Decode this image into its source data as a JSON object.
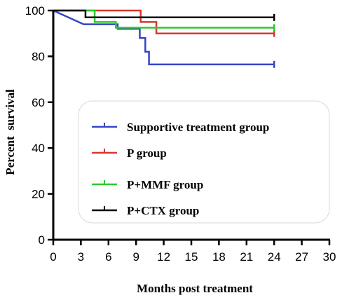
{
  "chart_data": {
    "type": "line",
    "subtype": "kaplan-meier survival step curve",
    "xlabel": "Months post treatment",
    "ylabel": "Percent  survival",
    "xlim": [
      0,
      30
    ],
    "ylim": [
      0,
      100
    ],
    "xticks": [
      "0",
      "3",
      "6",
      "9",
      "12",
      "15",
      "18",
      "21",
      "24",
      "27",
      "30"
    ],
    "yticks": [
      "0",
      "20",
      "40",
      "60",
      "80",
      "100"
    ],
    "grid": false,
    "legend_position": "center-right, inside plot area",
    "series": [
      {
        "name": "Supportive treatment group",
        "color": "#3446c4",
        "steps": [
          [
            0,
            100
          ],
          [
            3.3,
            94
          ],
          [
            7,
            94
          ],
          [
            7,
            92
          ],
          [
            9.4,
            92
          ],
          [
            9.4,
            88
          ],
          [
            10,
            88
          ],
          [
            10,
            82
          ],
          [
            10.4,
            82
          ],
          [
            10.4,
            76.5
          ],
          [
            24,
            76.5
          ]
        ]
      },
      {
        "name": "P group",
        "color": "#d7372f",
        "steps": [
          [
            0,
            100
          ],
          [
            9.5,
            100
          ],
          [
            9.5,
            95
          ],
          [
            11.2,
            95
          ],
          [
            11.2,
            90
          ],
          [
            24,
            90
          ]
        ]
      },
      {
        "name": "P+MMF group",
        "color": "#2ec92e",
        "steps": [
          [
            0,
            100
          ],
          [
            4.5,
            100
          ],
          [
            4.5,
            95
          ],
          [
            6.8,
            95
          ],
          [
            6.8,
            92.5
          ],
          [
            24,
            92.5
          ]
        ]
      },
      {
        "name": "P+CTX group",
        "color": "#000000",
        "steps": [
          [
            0,
            100
          ],
          [
            3.5,
            100
          ],
          [
            3.5,
            97
          ],
          [
            24,
            97
          ]
        ]
      }
    ]
  }
}
